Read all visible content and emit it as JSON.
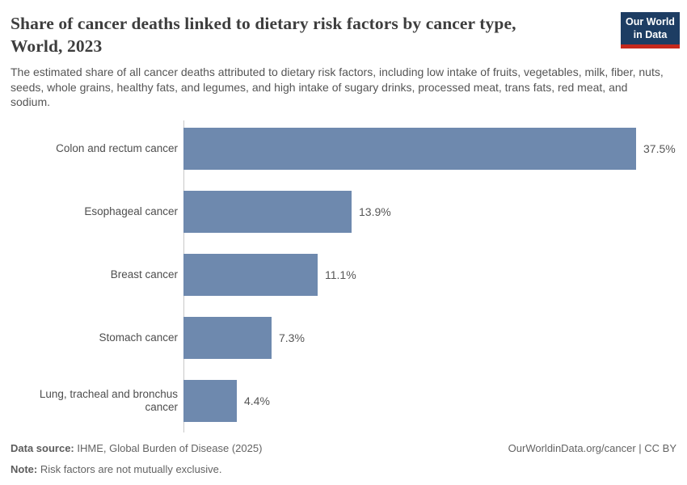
{
  "header": {
    "title_lines": [
      "Share of cancer deaths linked to dietary risk factors by cancer type,",
      "World, 2023"
    ],
    "subtitle": "The estimated share of all cancer deaths attributed to dietary risk factors, including low intake of fruits, vegetables, milk, fiber, nuts, seeds, whole grains, healthy fats, and legumes, and high intake of sugary drinks, processed meat, trans fats, red meat, and sodium.",
    "logo_lines": [
      "Our World",
      "in Data"
    ],
    "logo_colors": {
      "background": "#1d3d63",
      "underline": "#c5281c",
      "text": "#ffffff"
    }
  },
  "chart_data": {
    "type": "bar",
    "orientation": "horizontal",
    "title": "Share of cancer deaths linked to dietary risk factors by cancer type, World, 2023",
    "categories": [
      "Colon and rectum cancer",
      "Esophageal cancer",
      "Breast cancer",
      "Stomach cancer",
      "Lung, tracheal and bronchus cancer"
    ],
    "values": [
      37.5,
      13.9,
      11.1,
      7.3,
      4.4
    ],
    "value_labels": [
      "37.5%",
      "13.9%",
      "11.1%",
      "7.3%",
      "4.4%"
    ],
    "unit": "%",
    "xlim": [
      0,
      37.5
    ],
    "grid": false,
    "legend": "none",
    "bar_color": "#6e89ae",
    "axis_color": "#c8c8c8"
  },
  "footer": {
    "datasource_label": "Data source:",
    "datasource_value": " IHME, Global Burden of Disease (2025)",
    "note_label": "Note:",
    "note_value": " Risk factors are not mutually exclusive.",
    "rights": "OurWorldinData.org/cancer | CC BY"
  }
}
